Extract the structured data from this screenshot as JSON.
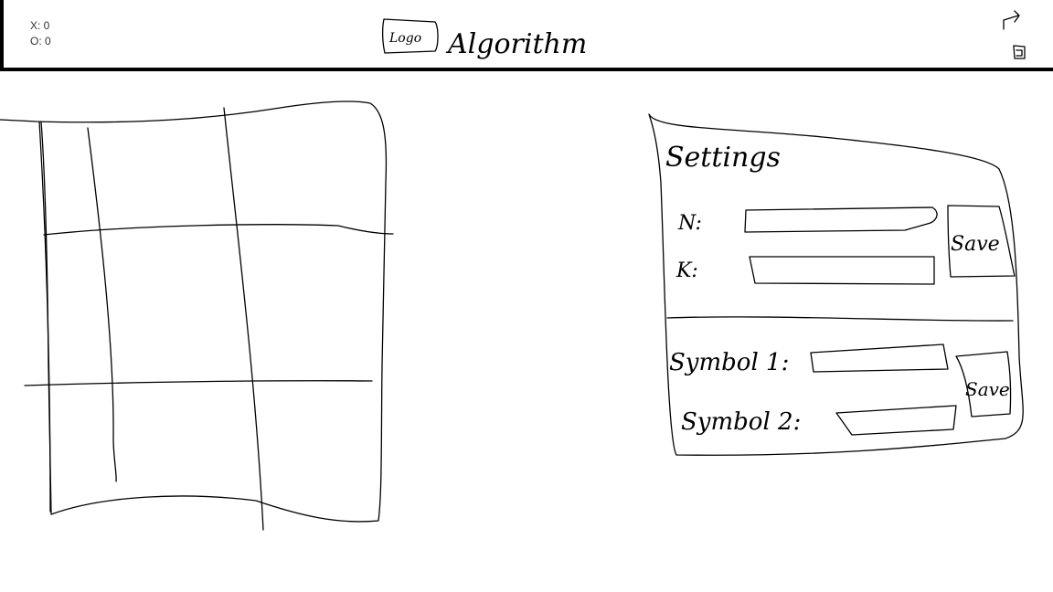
{
  "header": {
    "score_x": "X: 0",
    "score_o": "O: 0",
    "logo": "Logo",
    "title": "Algorithm"
  },
  "settings": {
    "title": "Settings",
    "fields": [
      {
        "label": "N:"
      },
      {
        "label": "K:"
      }
    ],
    "save_button": "Save",
    "symbols": [
      {
        "label": "Symbol 1:"
      },
      {
        "label": "Symbol 2:"
      }
    ],
    "symbols_save_button": "Save"
  }
}
